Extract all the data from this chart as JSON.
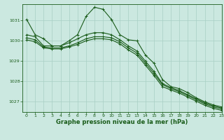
{
  "background_color": "#cbe8e0",
  "plot_bg_color": "#cbe8e0",
  "grid_color": "#a8cfc4",
  "line_color": "#1a5c1a",
  "title": "Graphe pression niveau de la mer (hPa)",
  "xlim": [
    -0.5,
    23
  ],
  "ylim": [
    1026.5,
    1031.8
  ],
  "yticks": [
    1027,
    1028,
    1029,
    1030,
    1031
  ],
  "xticks": [
    0,
    1,
    2,
    3,
    4,
    5,
    6,
    7,
    8,
    9,
    10,
    11,
    12,
    13,
    14,
    15,
    16,
    17,
    18,
    19,
    20,
    21,
    22,
    23
  ],
  "series": [
    [
      1031.05,
      1030.3,
      1030.1,
      1029.75,
      1029.75,
      1030.0,
      1030.3,
      1031.2,
      1031.65,
      1031.55,
      1031.05,
      1030.3,
      1030.05,
      1030.0,
      1029.3,
      1028.9,
      1028.1,
      1027.75,
      1027.65,
      1027.45,
      1027.2,
      1027.0,
      1026.85,
      1026.75
    ],
    [
      1030.3,
      1030.2,
      1029.75,
      1029.75,
      1029.75,
      1029.9,
      1030.1,
      1030.3,
      1030.4,
      1030.4,
      1030.3,
      1030.05,
      1029.75,
      1029.5,
      1029.0,
      1028.5,
      1027.9,
      1027.7,
      1027.55,
      1027.35,
      1027.15,
      1026.95,
      1026.8,
      1026.7
    ],
    [
      1030.15,
      1030.05,
      1029.7,
      1029.65,
      1029.65,
      1029.75,
      1029.9,
      1030.1,
      1030.2,
      1030.2,
      1030.15,
      1029.95,
      1029.65,
      1029.4,
      1028.9,
      1028.4,
      1027.85,
      1027.65,
      1027.5,
      1027.3,
      1027.1,
      1026.9,
      1026.75,
      1026.65
    ],
    [
      1030.05,
      1029.95,
      1029.65,
      1029.6,
      1029.6,
      1029.7,
      1029.82,
      1030.0,
      1030.1,
      1030.1,
      1030.05,
      1029.85,
      1029.55,
      1029.3,
      1028.8,
      1028.3,
      1027.75,
      1027.58,
      1027.43,
      1027.23,
      1027.03,
      1026.83,
      1026.68,
      1026.58
    ]
  ],
  "marker": "+",
  "markersize": 3,
  "linewidth": 0.8,
  "title_fontsize": 6,
  "tick_fontsize": 4.5
}
